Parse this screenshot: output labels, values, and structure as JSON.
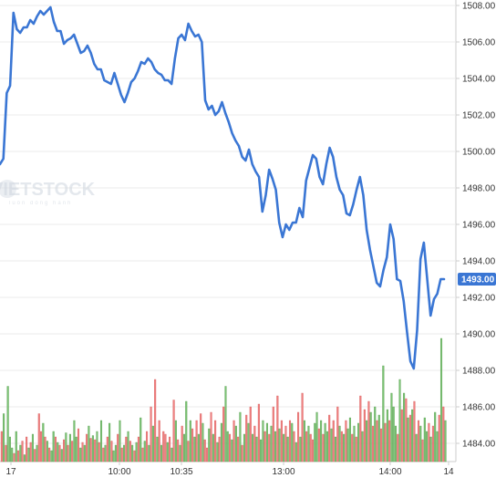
{
  "watermark": {
    "text": "VIETSTOCK",
    "subtitle": "luôn đồng hành"
  },
  "colors": {
    "line": "#3a76d4",
    "up": "#7bc374",
    "down": "#f08080",
    "grid": "#ebebeb",
    "badge": "#3a76d4"
  },
  "chart_data": {
    "type": "line",
    "title": "",
    "xlabel": "",
    "ylabel": "",
    "ylim": [
      1483,
      1508.5
    ],
    "grid": true,
    "y_ticks": [
      "1484.00",
      "1486.00",
      "1488.00",
      "1490.00",
      "1492.00",
      "1494.00",
      "1496.00",
      "1498.00",
      "1500.00",
      "1502.00",
      "1504.00",
      "1506.00",
      "1508.00"
    ],
    "x_ticks": [
      "17",
      "10:00",
      "10:35",
      "13:00",
      "14:00",
      "14"
    ],
    "last_price": "1493.00",
    "series": [
      {
        "values": [
          1499.3,
          1499.6,
          1503.2,
          1503.6,
          1507.6,
          1506.7,
          1506.5,
          1506.8,
          1506.8,
          1507.2,
          1507.0,
          1507.4,
          1507.7,
          1507.5,
          1507.7,
          1507.9,
          1507.1,
          1506.6,
          1506.6,
          1505.9,
          1506.1,
          1506.2,
          1506.4,
          1505.9,
          1505.4,
          1505.5,
          1505.8,
          1505.4,
          1504.8,
          1504.5,
          1504.5,
          1503.9,
          1503.8,
          1503.7,
          1504.3,
          1503.7,
          1503.1,
          1502.7,
          1503.2,
          1503.8,
          1504.0,
          1504.4,
          1504.9,
          1504.8,
          1505.1,
          1504.9,
          1504.5,
          1504.3,
          1504.2,
          1503.9,
          1503.9,
          1503.7,
          1505.1,
          1506.2,
          1506.4,
          1506.1,
          1507.0,
          1506.6,
          1506.3,
          1506.4,
          1506.0,
          1502.8,
          1502.3,
          1502.5,
          1502.0,
          1502.2,
          1502.7,
          1502.1,
          1501.6,
          1501.0,
          1500.6,
          1500.3,
          1499.7,
          1499.5,
          1500.1,
          1499.3,
          1498.9,
          1498.6,
          1496.7,
          1497.6,
          1499.0,
          1498.5,
          1497.9,
          1496.1,
          1495.3,
          1496.0,
          1495.7,
          1496.1,
          1496.1,
          1496.9,
          1496.4,
          1498.4,
          1499.1,
          1499.8,
          1499.6,
          1498.6,
          1498.2,
          1499.3,
          1500.2,
          1499.7,
          1498.6,
          1497.9,
          1497.6,
          1496.6,
          1496.5,
          1497.1,
          1497.9,
          1498.6,
          1497.6,
          1495.7,
          1494.6,
          1493.7,
          1492.8,
          1492.6,
          1493.5,
          1494.2,
          1496.0,
          1495.2,
          1493.0,
          1492.9,
          1491.8,
          1490.1,
          1488.5,
          1488.1,
          1490.2,
          1494.1,
          1495.0,
          1493.0,
          1491.0,
          1491.9,
          1492.2,
          1493.0,
          1493.0
        ]
      }
    ],
    "volume": {
      "direction": [
        "d",
        "u",
        "d",
        "u",
        "u",
        "u",
        "d",
        "u",
        "d",
        "u",
        "d",
        "u",
        "d",
        "u",
        "d",
        "u",
        "d",
        "u",
        "d",
        "d",
        "u",
        "d",
        "u",
        "d",
        "u",
        "u",
        "d",
        "u",
        "d",
        "u",
        "d",
        "u",
        "d",
        "u",
        "d",
        "u",
        "u",
        "d",
        "u",
        "d",
        "u",
        "d",
        "u",
        "d",
        "u",
        "d",
        "u",
        "d",
        "u",
        "d",
        "u",
        "d",
        "u",
        "d",
        "u",
        "u",
        "d",
        "u",
        "d",
        "u",
        "d",
        "u",
        "d",
        "u",
        "d",
        "u",
        "d",
        "u",
        "d",
        "u",
        "d",
        "u",
        "d",
        "u",
        "d",
        "u",
        "d",
        "u",
        "d",
        "d",
        "u",
        "d",
        "u",
        "d",
        "u",
        "d",
        "u",
        "d",
        "u",
        "u",
        "d",
        "u",
        "d",
        "u",
        "d",
        "u",
        "d",
        "u",
        "d",
        "d",
        "u",
        "d",
        "u",
        "d",
        "u",
        "d",
        "u",
        "d",
        "u",
        "u",
        "d",
        "u",
        "d",
        "u",
        "d",
        "u",
        "d",
        "u",
        "d",
        "u",
        "d",
        "u",
        "d",
        "u",
        "d",
        "u",
        "u",
        "d",
        "u",
        "d",
        "u",
        "d",
        "u",
        "d",
        "u",
        "d",
        "u",
        "d",
        "u",
        "d",
        "u",
        "d",
        "u",
        "d",
        "u",
        "d",
        "u",
        "d",
        "u",
        "d",
        "d",
        "u",
        "u",
        "d",
        "u",
        "d",
        "u",
        "u",
        "d",
        "u",
        "d",
        "u",
        "d",
        "u",
        "d",
        "u",
        "d",
        "u",
        "u",
        "d",
        "u",
        "d",
        "u",
        "d",
        "u",
        "d",
        "u",
        "d",
        "u",
        "d",
        "u",
        "d",
        "u",
        "d",
        "u",
        "d",
        "u",
        "d",
        "u",
        "u",
        "u",
        "d",
        "u",
        "d",
        "u",
        "d",
        "u",
        "d",
        "u",
        "d",
        "u",
        "d",
        "u",
        "d",
        "u",
        "u",
        "d",
        "u",
        "d",
        "u",
        "u",
        "d",
        "u",
        "d",
        "u",
        "d",
        "u",
        "d",
        "u",
        "d",
        "u",
        "d",
        "u",
        "u"
      ],
      "level": [
        0.22,
        0.35,
        0.12,
        0.55,
        0.18,
        0.1,
        0.06,
        0.22,
        0.08,
        0.12,
        0.15,
        0.05,
        0.18,
        0.1,
        0.14,
        0.2,
        0.09,
        0.12,
        0.35,
        0.22,
        0.28,
        0.18,
        0.15,
        0.1,
        0.08,
        0.22,
        0.18,
        0.14,
        0.12,
        0.09,
        0.16,
        0.21,
        0.12,
        0.2,
        0.15,
        0.3,
        0.18,
        0.24,
        0.1,
        0.14,
        0.12,
        0.2,
        0.26,
        0.17,
        0.19,
        0.16,
        0.22,
        0.14,
        0.3,
        0.1,
        0.12,
        0.18,
        0.28,
        0.15,
        0.08,
        0.12,
        0.2,
        0.3,
        0.1,
        0.12,
        0.18,
        0.22,
        0.15,
        0.12,
        0.08,
        0.14,
        0.18,
        0.32,
        0.1,
        0.15,
        0.22,
        0.12,
        0.4,
        0.26,
        0.6,
        0.18,
        0.3,
        0.12,
        0.22,
        0.2,
        0.14,
        0.18,
        0.1,
        0.45,
        0.3,
        0.16,
        0.12,
        0.26,
        0.2,
        0.44,
        0.15,
        0.3,
        0.24,
        0.18,
        0.3,
        0.2,
        0.35,
        0.28,
        0.16,
        0.1,
        0.24,
        0.36,
        0.2,
        0.3,
        0.14,
        0.18,
        0.28,
        0.4,
        0.55,
        0.22,
        0.2,
        0.16,
        0.3,
        0.26,
        0.18,
        0.36,
        0.12,
        0.2,
        0.34,
        0.28,
        0.4,
        0.2,
        0.26,
        0.18,
        0.42,
        0.16,
        0.3,
        0.22,
        0.28,
        0.2,
        0.26,
        0.4,
        0.22,
        0.48,
        0.24,
        0.3,
        0.2,
        0.26,
        0.18,
        0.3,
        0.28,
        0.22,
        0.14,
        0.36,
        0.18,
        0.5,
        0.3,
        0.22,
        0.26,
        0.2,
        0.16,
        0.28,
        0.36,
        0.24,
        0.3,
        0.2,
        0.28,
        0.22,
        0.34,
        0.24,
        0.3,
        0.18,
        0.4,
        0.26,
        0.22,
        0.2,
        0.3,
        0.24,
        0.32,
        0.2,
        0.26,
        0.18,
        0.28,
        0.48,
        0.22,
        0.38,
        0.3,
        0.44,
        0.36,
        0.26,
        0.4,
        0.3,
        0.34,
        0.24,
        0.7,
        0.28,
        0.38,
        0.3,
        0.5,
        0.4,
        0.26,
        0.2,
        0.6,
        0.38,
        0.5,
        0.46,
        0.32,
        0.34,
        0.38,
        0.44,
        0.2,
        0.3,
        0.26,
        0.16,
        0.32,
        0.22,
        0.28,
        0.18,
        0.26,
        0.36,
        0.22,
        0.34,
        0.9,
        0.4,
        0.3
      ]
    }
  }
}
